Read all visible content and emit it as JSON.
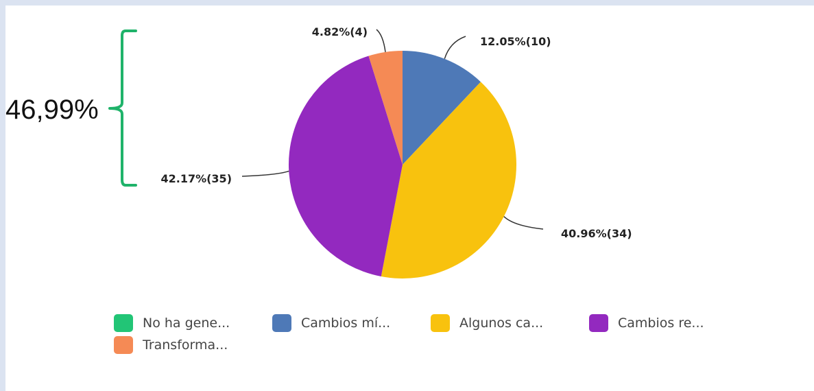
{
  "chart_data": {
    "type": "pie",
    "slices": [
      {
        "name": "No ha gene...",
        "value": 0,
        "percent": 0,
        "color": "#22c576",
        "label": ""
      },
      {
        "name": "Cambios mí...",
        "value": 10,
        "percent": 12.05,
        "color": "#4e79b7",
        "label": "12.05%(10)"
      },
      {
        "name": "Algunos ca...",
        "value": 34,
        "percent": 40.96,
        "color": "#f8c20e",
        "label": "40.96%(34)"
      },
      {
        "name": "Cambios re...",
        "value": 35,
        "percent": 42.17,
        "color": "#9329bf",
        "label": "42.17%(35)"
      },
      {
        "name": "Transforma...",
        "value": 4,
        "percent": 4.82,
        "color": "#f58a55",
        "label": "4.82%(4)"
      }
    ],
    "legend_position": "bottom"
  },
  "annotation": {
    "text": "46,99%",
    "color": "#1fb36a",
    "brace_covers": [
      "42.17%(35)",
      "4.82%(4)"
    ]
  }
}
